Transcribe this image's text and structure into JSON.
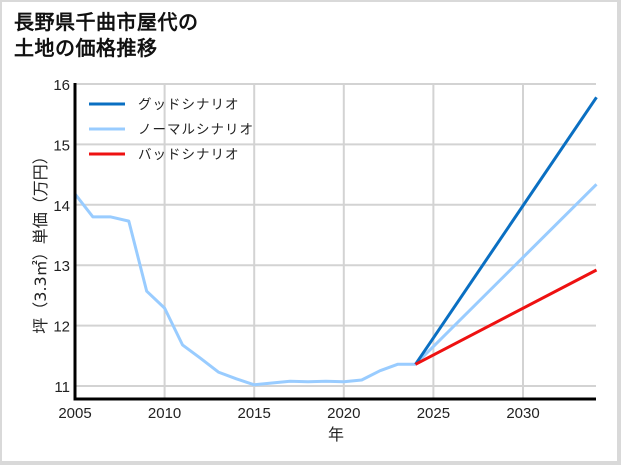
{
  "title_line1": "長野県千曲市屋代の",
  "title_line2": "土地の価格推移",
  "chart_data": {
    "type": "line",
    "title": "長野県千曲市屋代の土地の価格推移",
    "xlabel": "年",
    "ylabel": "坪（3.3㎡）単価（万円）",
    "xlim": [
      2005,
      2034.1
    ],
    "ylim": [
      10.8,
      16
    ],
    "grid": true,
    "legend_position": "upper left",
    "x_ticks": [
      2005,
      2010,
      2015,
      2020,
      2025,
      2030
    ],
    "y_ticks": [
      11,
      12,
      13,
      14,
      15,
      16
    ],
    "series": [
      {
        "name": "グッドシナリオ",
        "color": "#0a6fc2",
        "x": [
          2024,
          2034.1
        ],
        "values": [
          11.36,
          15.78
        ]
      },
      {
        "name": "ノーマルシナリオ",
        "color": "#99ccff",
        "x": [
          2005,
          2006,
          2007,
          2008,
          2009,
          2010,
          2011,
          2012,
          2013,
          2014,
          2015,
          2016,
          2017,
          2018,
          2019,
          2020,
          2021,
          2022,
          2023,
          2024,
          2034.1
        ],
        "values": [
          14.18,
          13.8,
          13.8,
          13.73,
          12.57,
          12.29,
          11.68,
          11.46,
          11.23,
          11.12,
          11.02,
          11.05,
          11.08,
          11.07,
          11.08,
          11.07,
          11.1,
          11.25,
          11.36,
          11.36,
          14.34
        ]
      },
      {
        "name": "バッドシナリオ",
        "color": "#ee1111",
        "x": [
          2024,
          2034.1
        ],
        "values": [
          11.36,
          12.92
        ]
      }
    ]
  }
}
